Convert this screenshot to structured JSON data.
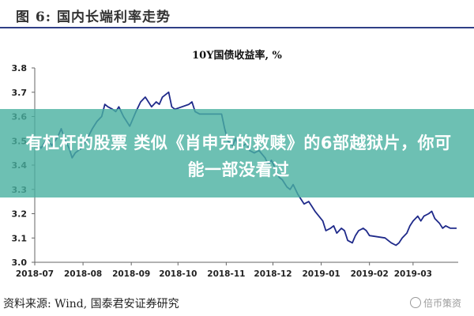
{
  "figure": {
    "title": "图 6:  国内长端利率走势"
  },
  "chart_data": {
    "type": "line",
    "title": "10Y国债收益率, %",
    "xlabel": "",
    "ylabel": "",
    "ylim": [
      3.0,
      3.8
    ],
    "yticks": [
      3.0,
      3.1,
      3.2,
      3.3,
      3.4,
      3.5,
      3.6,
      3.7,
      3.8
    ],
    "ytick_labels": [
      "3.0",
      "3.1",
      "3.2",
      "3.3",
      "3.4",
      "3.5",
      "3.6",
      "3.7",
      "3.8"
    ],
    "xtick_labels": [
      "2018-07",
      "2018-08",
      "2018-09",
      "2018-10",
      "2018-11",
      "2018-12",
      "2019-01",
      "2019-02",
      "2019-03"
    ],
    "grid": false,
    "line_color": "#1f2a8a",
    "series": [
      {
        "points": [
          [
            "2018-07-02",
            3.49
          ],
          [
            "2018-07-05",
            3.47
          ],
          [
            "2018-07-09",
            3.51
          ],
          [
            "2018-07-12",
            3.48
          ],
          [
            "2018-07-16",
            3.52
          ],
          [
            "2018-07-18",
            3.55
          ],
          [
            "2018-07-20",
            3.51
          ],
          [
            "2018-07-23",
            3.47
          ],
          [
            "2018-07-25",
            3.43
          ],
          [
            "2018-07-27",
            3.45
          ],
          [
            "2018-07-31",
            3.47
          ],
          [
            "2018-08-03",
            3.5
          ],
          [
            "2018-08-07",
            3.55
          ],
          [
            "2018-08-10",
            3.58
          ],
          [
            "2018-08-13",
            3.6
          ],
          [
            "2018-08-15",
            3.65
          ],
          [
            "2018-08-17",
            3.64
          ],
          [
            "2018-08-20",
            3.63
          ],
          [
            "2018-08-22",
            3.62
          ],
          [
            "2018-08-24",
            3.64
          ],
          [
            "2018-08-27",
            3.6
          ],
          [
            "2018-08-29",
            3.58
          ],
          [
            "2018-08-31",
            3.56
          ],
          [
            "2018-09-04",
            3.62
          ],
          [
            "2018-09-07",
            3.66
          ],
          [
            "2018-09-10",
            3.68
          ],
          [
            "2018-09-12",
            3.66
          ],
          [
            "2018-09-14",
            3.64
          ],
          [
            "2018-09-17",
            3.66
          ],
          [
            "2018-09-19",
            3.65
          ],
          [
            "2018-09-21",
            3.68
          ],
          [
            "2018-09-25",
            3.7
          ],
          [
            "2018-09-27",
            3.64
          ],
          [
            "2018-09-29",
            3.63
          ],
          [
            "2018-10-08",
            3.65
          ],
          [
            "2018-10-10",
            3.66
          ],
          [
            "2018-10-12",
            3.62
          ],
          [
            "2018-10-15",
            3.61
          ],
          [
            "2018-10-18",
            3.61
          ],
          [
            "2018-10-22",
            3.61
          ],
          [
            "2018-10-25",
            3.61
          ],
          [
            "2018-10-29",
            3.61
          ],
          [
            "2018-10-31",
            3.55
          ],
          [
            "2018-11-02",
            3.5
          ],
          [
            "2018-11-05",
            3.48
          ],
          [
            "2018-11-07",
            3.51
          ],
          [
            "2018-11-09",
            3.47
          ],
          [
            "2018-11-12",
            3.48
          ],
          [
            "2018-11-14",
            3.49
          ],
          [
            "2018-11-16",
            3.46
          ],
          [
            "2018-11-19",
            3.45
          ],
          [
            "2018-11-22",
            3.46
          ],
          [
            "2018-11-26",
            3.43
          ],
          [
            "2018-11-28",
            3.4
          ],
          [
            "2018-11-30",
            3.42
          ],
          [
            "2018-12-03",
            3.38
          ],
          [
            "2018-12-05",
            3.35
          ],
          [
            "2018-12-07",
            3.34
          ],
          [
            "2018-12-10",
            3.31
          ],
          [
            "2018-12-12",
            3.3
          ],
          [
            "2018-12-14",
            3.32
          ],
          [
            "2018-12-17",
            3.28
          ],
          [
            "2018-12-19",
            3.26
          ],
          [
            "2018-12-21",
            3.24
          ],
          [
            "2018-12-24",
            3.25
          ],
          [
            "2018-12-26",
            3.23
          ],
          [
            "2018-12-28",
            3.21
          ],
          [
            "2019-01-02",
            3.17
          ],
          [
            "2019-01-04",
            3.13
          ],
          [
            "2019-01-07",
            3.14
          ],
          [
            "2019-01-09",
            3.15
          ],
          [
            "2019-01-11",
            3.12
          ],
          [
            "2019-01-14",
            3.14
          ],
          [
            "2019-01-16",
            3.13
          ],
          [
            "2019-01-18",
            3.09
          ],
          [
            "2019-01-21",
            3.08
          ],
          [
            "2019-01-23",
            3.11
          ],
          [
            "2019-01-25",
            3.13
          ],
          [
            "2019-01-28",
            3.14
          ],
          [
            "2019-01-30",
            3.13
          ],
          [
            "2019-02-01",
            3.11
          ],
          [
            "2019-02-11",
            3.1
          ],
          [
            "2019-02-13",
            3.09
          ],
          [
            "2019-02-15",
            3.08
          ],
          [
            "2019-02-18",
            3.07
          ],
          [
            "2019-02-20",
            3.08
          ],
          [
            "2019-02-22",
            3.1
          ],
          [
            "2019-02-25",
            3.12
          ],
          [
            "2019-02-27",
            3.15
          ],
          [
            "2019-03-01",
            3.17
          ],
          [
            "2019-03-04",
            3.19
          ],
          [
            "2019-03-06",
            3.17
          ],
          [
            "2019-03-08",
            3.19
          ],
          [
            "2019-03-11",
            3.2
          ],
          [
            "2019-03-13",
            3.21
          ],
          [
            "2019-03-15",
            3.18
          ],
          [
            "2019-03-18",
            3.16
          ],
          [
            "2019-03-20",
            3.14
          ],
          [
            "2019-03-22",
            3.15
          ],
          [
            "2019-03-25",
            3.14
          ],
          [
            "2019-03-27",
            3.14
          ],
          [
            "2019-03-29",
            3.14
          ]
        ]
      }
    ]
  },
  "source": {
    "text": "资料来源:   Wind,  国泰君安证券研究"
  },
  "overlay": {
    "text": "有杠杆的股票 类似《肖申克的救赎》的6部越狱片，你可能一部没看过"
  },
  "watermark": {
    "text": "倍币策资"
  }
}
